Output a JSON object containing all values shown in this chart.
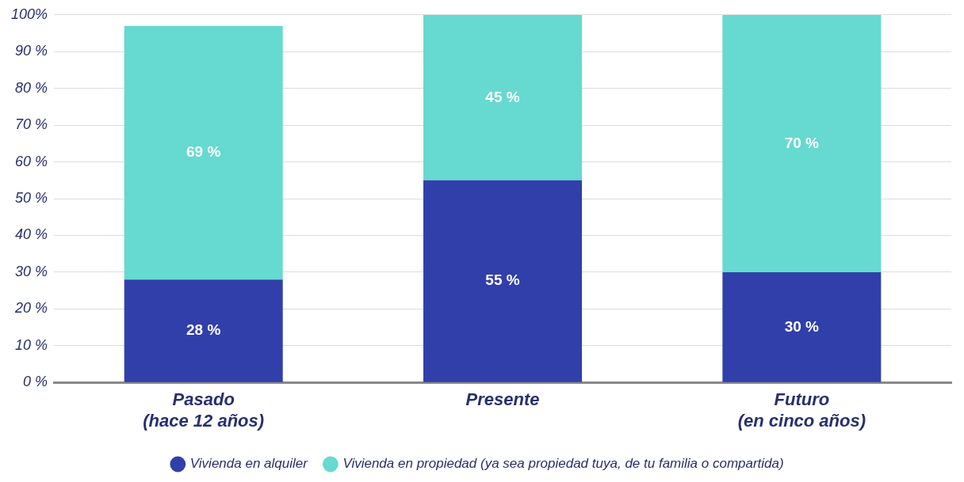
{
  "chart_data": {
    "type": "bar",
    "stacked": true,
    "categories": [
      "Pasado\n(hace 12 años)",
      "Presente",
      "Futuro\n(en cinco años)"
    ],
    "series": [
      {
        "name": "Vivienda en alquiler",
        "color": "#313fab",
        "values": [
          28,
          55,
          30
        ],
        "value_labels": [
          "28 %",
          "55 %",
          "30 %"
        ]
      },
      {
        "name": "Vivienda en propiedad (ya sea propiedad tuya, de tu familia o compartida)",
        "color": "#66d9d0",
        "values": [
          69,
          45,
          70
        ],
        "value_labels": [
          "69 %",
          "45 %",
          "70 %"
        ]
      }
    ],
    "ylim": [
      0,
      100
    ],
    "yticks": [
      {
        "value": 0,
        "label": "0 %"
      },
      {
        "value": 10,
        "label": "10 %"
      },
      {
        "value": 20,
        "label": "20 %"
      },
      {
        "value": 30,
        "label": "30 %"
      },
      {
        "value": 40,
        "label": "40 %"
      },
      {
        "value": 50,
        "label": "50 %"
      },
      {
        "value": 60,
        "label": "60 %"
      },
      {
        "value": 70,
        "label": "70 %"
      },
      {
        "value": 80,
        "label": "80 %"
      },
      {
        "value": 90,
        "label": "90 %"
      },
      {
        "value": 100,
        "label": "100%"
      }
    ],
    "grid": "y",
    "legend": "bottom"
  }
}
